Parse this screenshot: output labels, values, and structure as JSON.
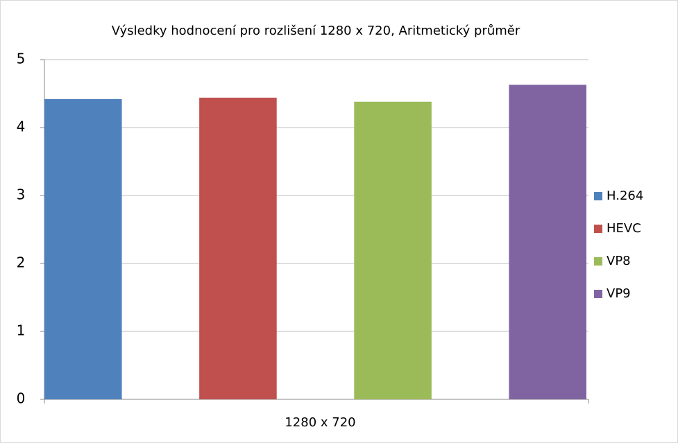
{
  "chart_data": {
    "type": "bar",
    "title": "Výsledky hodnocení pro rozlišení 1280 x 720, Aritmetický průměr",
    "categories": [
      "1280 x 720"
    ],
    "series": [
      {
        "name": "H.264",
        "color": "#4f81bd",
        "values": [
          4.42
        ]
      },
      {
        "name": "HEVC",
        "color": "#c0504d",
        "values": [
          4.44
        ]
      },
      {
        "name": "VP8",
        "color": "#9bbb59",
        "values": [
          4.38
        ]
      },
      {
        "name": "VP9",
        "color": "#8064a2",
        "values": [
          4.63
        ]
      }
    ],
    "ylim": [
      0,
      5
    ],
    "yticks": [
      0,
      1,
      2,
      3,
      4,
      5
    ],
    "grid": true,
    "legend": "right"
  }
}
